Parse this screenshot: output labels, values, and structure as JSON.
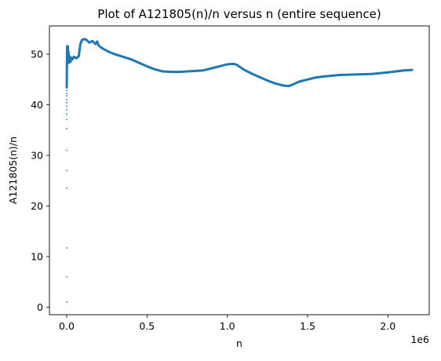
{
  "chart_data": {
    "type": "scatter",
    "title": "Plot of A121805(n)/n versus n (entire sequence)",
    "xlabel": "n",
    "ylabel": "A121805(n)/n",
    "x_offset_label": "1e6",
    "xlim": [
      -107500,
      2257500
    ],
    "ylim": [
      -1.5,
      55.6
    ],
    "xticks": [
      0,
      0.5,
      1.0,
      1.5,
      2.0
    ],
    "xtick_labels": [
      "0.0",
      "0.5",
      "1.0",
      "1.5",
      "2.0"
    ],
    "xtick_scale": 1000000,
    "yticks": [
      0,
      10,
      20,
      30,
      40,
      50
    ],
    "ytick_labels": [
      "0",
      "10",
      "20",
      "30",
      "40",
      "50"
    ],
    "grid": false,
    "marker_color": "#1f77b4",
    "sparse_points": {
      "x": [
        1,
        2,
        3,
        4,
        5,
        6,
        7,
        8,
        9,
        10,
        11,
        12,
        13,
        14,
        15,
        16,
        17,
        18,
        19,
        20,
        21,
        22
      ],
      "y": [
        1.0,
        6.0,
        11.7,
        23.5,
        27.0,
        31.0,
        35.3,
        37.1,
        38.2,
        39.0,
        39.7,
        40.4,
        41.0,
        41.8,
        42.3,
        42.8,
        43.3,
        43.8,
        44.3,
        45.0,
        45.8,
        46.5
      ]
    },
    "series": [
      {
        "x": [
          200,
          1000,
          2000,
          3000,
          5000,
          7000,
          9000,
          11000,
          14000,
          18000,
          24000,
          30000,
          36000,
          45000,
          60000,
          75000,
          85000,
          95000,
          110000,
          125000,
          140000,
          160000,
          180000,
          190000,
          200000,
          220000,
          260000,
          300000,
          350000,
          400000,
          450000,
          500000,
          550000,
          600000,
          650000,
          700000,
          750000,
          800000,
          850000,
          900000,
          950000,
          1000000,
          1040000,
          1060000,
          1100000,
          1150000,
          1200000,
          1250000,
          1300000,
          1350000,
          1380000,
          1400000,
          1450000,
          1500000,
          1550000,
          1600000,
          1700000,
          1800000,
          1900000,
          2000000,
          2050000,
          2100000,
          2150000
        ],
        "y": [
          43.5,
          46.8,
          49.5,
          51.6,
          50.3,
          51.5,
          48.8,
          50.5,
          48.3,
          49.6,
          48.5,
          49.3,
          49.0,
          49.5,
          49.2,
          49.6,
          52.0,
          52.8,
          53.0,
          52.8,
          52.3,
          52.6,
          52.0,
          52.5,
          51.7,
          51.2,
          50.5,
          50.0,
          49.5,
          49.0,
          48.3,
          47.6,
          47.0,
          46.6,
          46.5,
          46.5,
          46.6,
          46.7,
          46.8,
          47.2,
          47.6,
          48.0,
          48.1,
          47.9,
          47.0,
          46.2,
          45.5,
          44.8,
          44.2,
          43.8,
          43.7,
          43.9,
          44.6,
          45.0,
          45.4,
          45.6,
          45.9,
          46.0,
          46.1,
          46.4,
          46.6,
          46.8,
          46.9
        ]
      }
    ]
  }
}
